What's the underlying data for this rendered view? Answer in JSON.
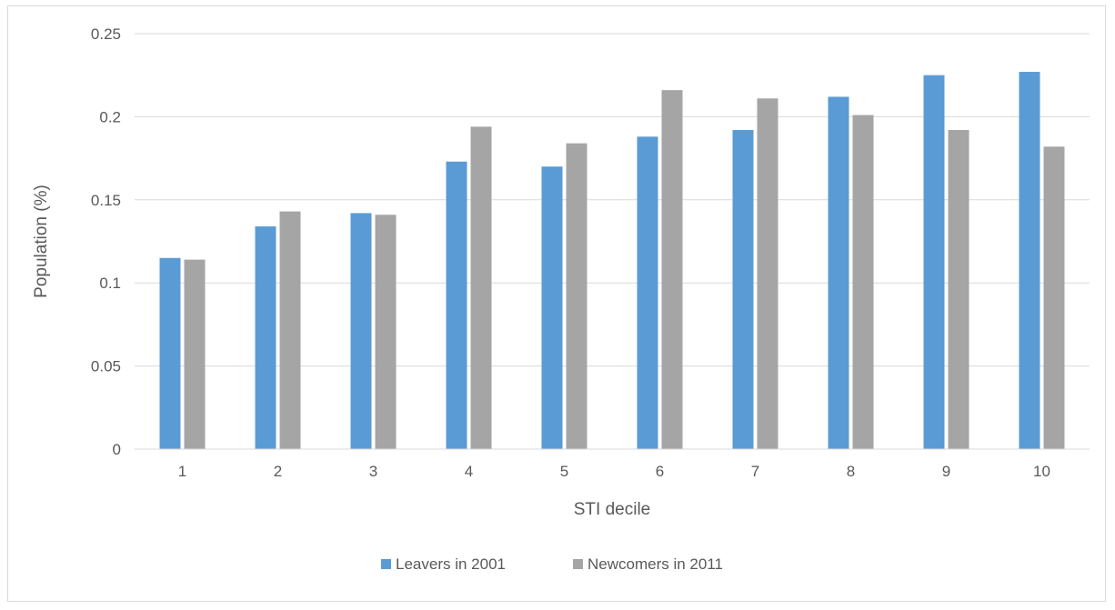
{
  "chart_data": {
    "type": "bar",
    "title": "",
    "xlabel": "STI decile",
    "ylabel": "Population (%)",
    "categories": [
      "1",
      "2",
      "3",
      "4",
      "5",
      "6",
      "7",
      "8",
      "9",
      "10"
    ],
    "series": [
      {
        "name": "Leavers in 2001",
        "color": "#5b9bd5",
        "values": [
          0.115,
          0.134,
          0.142,
          0.173,
          0.17,
          0.188,
          0.192,
          0.212,
          0.225,
          0.227
        ]
      },
      {
        "name": "Newcomers in 2011",
        "color": "#a5a5a5",
        "values": [
          0.114,
          0.143,
          0.141,
          0.194,
          0.184,
          0.216,
          0.211,
          0.201,
          0.192,
          0.182
        ]
      }
    ],
    "ylim": [
      0,
      0.25
    ],
    "yticks": [
      "0",
      "0.05",
      "0.1",
      "0.15",
      "0.2",
      "0.25"
    ],
    "grid": true,
    "legend_position": "bottom"
  }
}
